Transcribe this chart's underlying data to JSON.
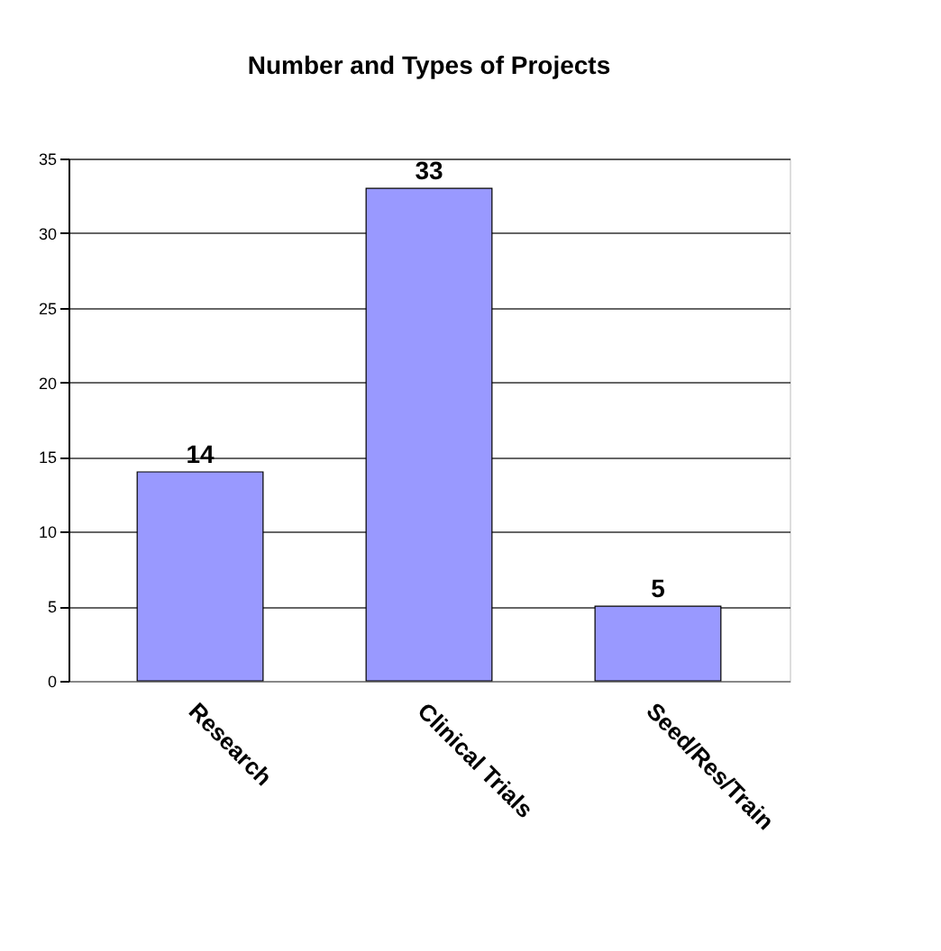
{
  "chart_data": {
    "type": "bar",
    "title": "Number and Types of  Projects",
    "categories": [
      "Research",
      "Clinical Trials",
      "Seed/Res/Train"
    ],
    "values": [
      14,
      33,
      5
    ],
    "color": "#9999ff",
    "ylim": [
      0,
      35
    ],
    "yticks": [
      0,
      5,
      10,
      15,
      20,
      25,
      30,
      35
    ],
    "grid": "y",
    "data_labels": true
  }
}
